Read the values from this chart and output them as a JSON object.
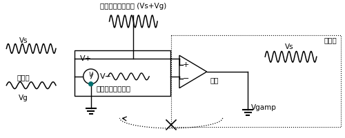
{
  "background_color": "#ffffff",
  "fig_width": 5.0,
  "fig_height": 2.0,
  "dpi": 100,
  "labels": {
    "top_signal": "グランド基準信号 (Vs+Vg)",
    "amp_box": "アンプ",
    "vs_left": "Vs",
    "noise": "ノイズ",
    "vg": "Vg",
    "vplus": "V+",
    "vminus": "V−",
    "gnd_ref": "グランド基準信号",
    "plus": "+",
    "minus": "−",
    "output": "出力",
    "vs_right": "Vs",
    "vgamp": "Vgamp"
  },
  "colors": {
    "black": "#000000",
    "teal": "#007070",
    "white": "#ffffff"
  }
}
